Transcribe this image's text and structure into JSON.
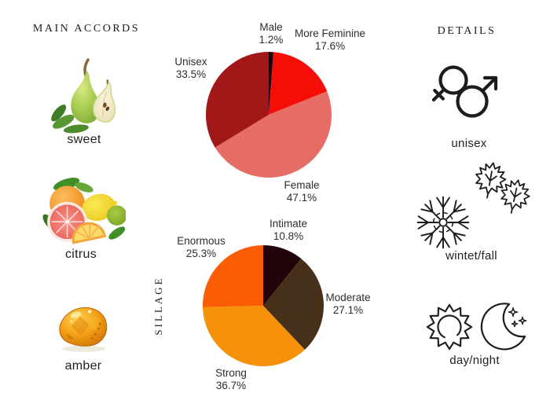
{
  "left_panel": {
    "title": "MAIN ACCORDS",
    "accords": [
      {
        "name": "sweet",
        "icon": "pear-illustration"
      },
      {
        "name": "citrus",
        "icon": "citrus-illustration"
      },
      {
        "name": "amber",
        "icon": "amber-illustration"
      }
    ]
  },
  "right_panel": {
    "title": "DETAILS",
    "details": [
      {
        "label": "unisex",
        "icon": "gender-unisex-icon"
      },
      {
        "label": "wintet/fall",
        "icon": "snowflake-and-maple-leaves-icon"
      },
      {
        "label": "day/night",
        "icon": "sun-and-moon-icon"
      }
    ]
  },
  "sillage_axis_label": "SILLAGE",
  "chart_data": [
    {
      "type": "pie",
      "name": "gender",
      "categories": [
        "Male",
        "More Feminine",
        "Female",
        "Unisex"
      ],
      "values": [
        1.2,
        17.6,
        47.1,
        33.5
      ],
      "pct_labels": [
        "1.2%",
        "17.6%",
        "47.1%",
        "33.5%"
      ],
      "colors": [
        "#1d0307",
        "#f70d07",
        "#e56d66",
        "#a21717"
      ],
      "start_angle_deg": 0,
      "direction": "clockwise",
      "legend_position": "outside-callouts"
    },
    {
      "type": "pie",
      "name": "sillage",
      "title": "SILLAGE",
      "categories": [
        "Intimate",
        "Moderate",
        "Strong",
        "Enormous"
      ],
      "values": [
        10.8,
        27.1,
        36.7,
        25.3
      ],
      "pct_labels": [
        "10.8%",
        "27.1%",
        "36.7%",
        "25.3%"
      ],
      "colors": [
        "#220309",
        "#463019",
        "#f5920a",
        "#fb5d04"
      ],
      "start_angle_deg": 0,
      "direction": "clockwise",
      "legend_position": "outside-callouts"
    }
  ]
}
